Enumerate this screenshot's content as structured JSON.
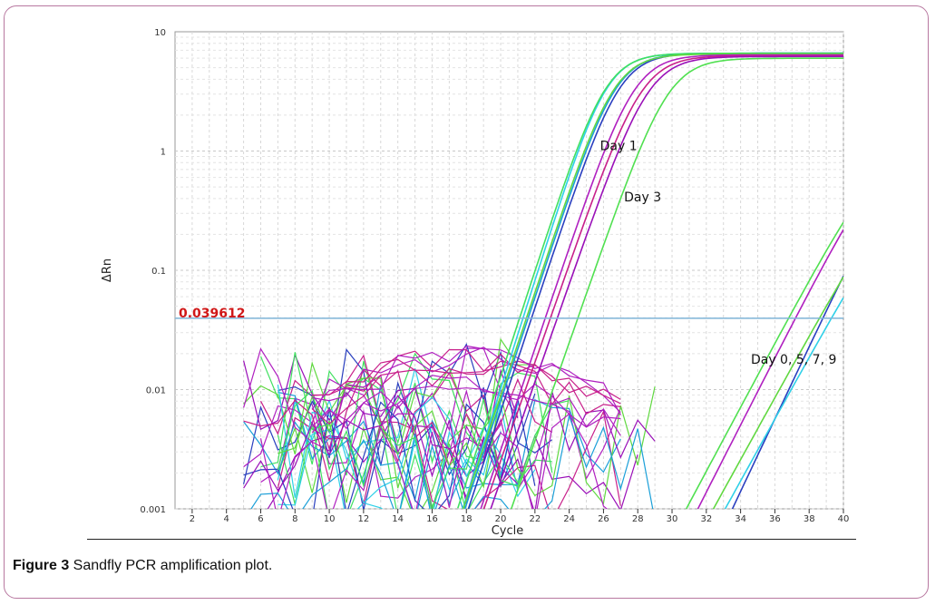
{
  "caption": {
    "label": "Figure 3",
    "text": " Sandfly PCR amplification plot."
  },
  "chart_data": {
    "type": "line",
    "xlabel": "Cycle",
    "ylabel": "ΔRn",
    "y_scale": "log",
    "xlim": [
      1,
      40
    ],
    "ylim": [
      0.001,
      10
    ],
    "x_ticks": [
      2,
      4,
      6,
      8,
      10,
      12,
      14,
      16,
      18,
      20,
      22,
      24,
      26,
      28,
      30,
      32,
      34,
      36,
      38,
      40
    ],
    "y_ticks": [
      {
        "value": 10,
        "label": "10"
      },
      {
        "value": 1,
        "label": "1"
      },
      {
        "value": 0.1,
        "label": "0.1"
      },
      {
        "value": 0.01,
        "label": "0.01"
      },
      {
        "value": 0.001,
        "label": "0.001"
      }
    ],
    "grid": true,
    "threshold": {
      "value": 0.039612,
      "label": "0.039612",
      "color": "#7fb4d8"
    },
    "annotations": [
      {
        "text": "Day 1",
        "x": 25.8,
        "y": 1.02
      },
      {
        "text": "Day 3",
        "x": 27.2,
        "y": 0.38
      },
      {
        "text": "Day 0, 5, 7, 9",
        "x": 34.6,
        "y": 0.0165
      }
    ],
    "series": [
      {
        "color": "#2fd0e8",
        "ct": 21.3,
        "plateau": 6.6,
        "k": 1.05
      },
      {
        "color": "#1a9fd8",
        "ct": 21.6,
        "plateau": 6.6,
        "k": 1.0
      },
      {
        "color": "#2a3fbf",
        "ct": 21.8,
        "plateau": 6.6,
        "k": 1.0
      },
      {
        "color": "#40e060",
        "ct": 21.1,
        "plateau": 6.6,
        "k": 1.02
      },
      {
        "color": "#60d840",
        "ct": 21.5,
        "plateau": 6.5,
        "k": 1.0
      },
      {
        "color": "#b020c0",
        "ct": 22.6,
        "plateau": 6.4,
        "k": 0.98
      },
      {
        "color": "#c8208a",
        "ct": 22.9,
        "plateau": 6.3,
        "k": 0.95
      },
      {
        "color": "#9a10b8",
        "ct": 23.3,
        "plateau": 6.2,
        "k": 0.95
      },
      {
        "color": "#50e050",
        "ct": 24.5,
        "plateau": 6.0,
        "k": 0.95
      },
      {
        "color": "#2a3fbf",
        "ct": 38.8,
        "plateau": 2.2,
        "k": 0.7
      },
      {
        "color": "#b020c0",
        "ct": 37.2,
        "plateau": 1.8,
        "k": 0.65
      },
      {
        "color": "#50e050",
        "ct": 36.8,
        "plateau": 1.8,
        "k": 0.62
      },
      {
        "color": "#60d840",
        "ct": 38.6,
        "plateau": 1.2,
        "k": 0.6
      },
      {
        "color": "#2fd0e8",
        "ct": 39.3,
        "plateau": 1.0,
        "k": 0.6
      }
    ]
  }
}
